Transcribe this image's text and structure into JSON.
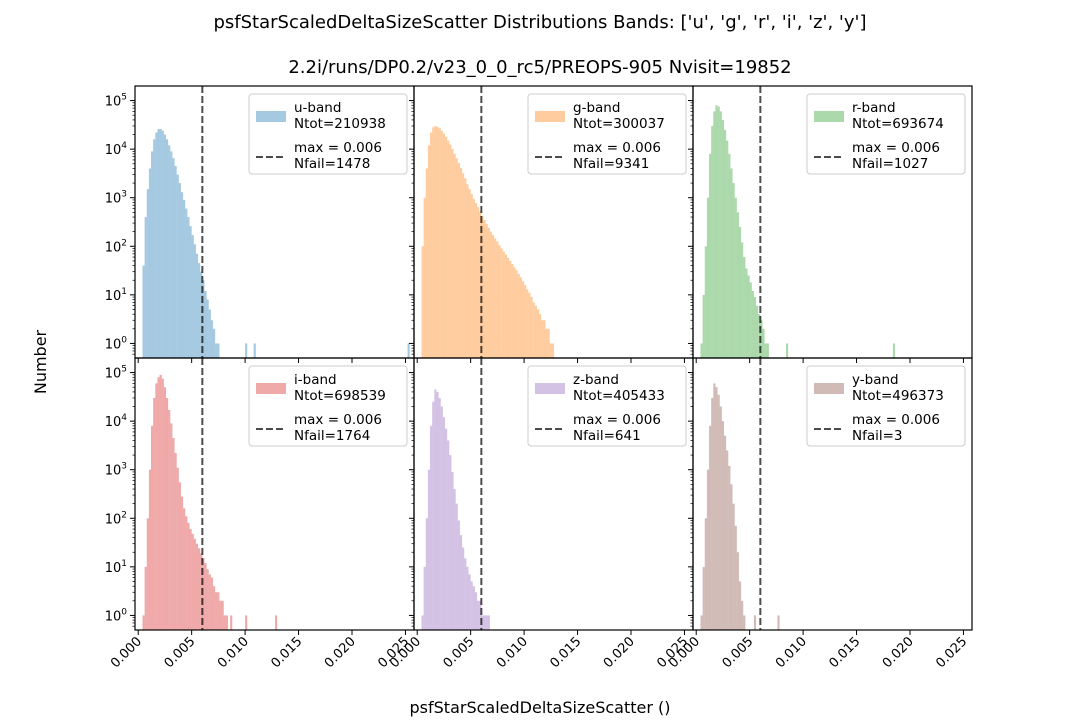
{
  "figure": {
    "title": "psfStarScaledDeltaSizeScatter Distributions  Bands: ['u', 'g', 'r', 'i', 'z', 'y']",
    "subtitle": "2.2i/runs/DP0.2/v23_0_0_rc5/PREOPS-905   Nvisit=19852",
    "xlabel": "psfStarScaledDeltaSizeScatter ()",
    "ylabel": "Number"
  },
  "chart_data": {
    "type": "bar",
    "xlim": [
      -0.0003,
      0.0258
    ],
    "ylim_log10": [
      -0.3,
      5.3
    ],
    "yscale": "log",
    "xticks": [
      0.0,
      0.005,
      0.01,
      0.015,
      0.02,
      0.025
    ],
    "xtick_labels": [
      "0.000",
      "0.005",
      "0.010",
      "0.015",
      "0.020",
      "0.025"
    ],
    "yticks_log10": [
      0,
      1,
      2,
      3,
      4,
      5
    ],
    "legend_placement": "upper right",
    "panels": [
      {
        "band_label": "u-band",
        "ntot_label": "Ntot=210938",
        "max_label": "max = 0.006",
        "nfail_label": "Nfail=1478",
        "color": "#1f77b4",
        "threshold": 0.006,
        "bin_start": 0.0004,
        "bin_width": 0.0002,
        "counts": [
          40,
          400,
          1500,
          4000,
          9000,
          16000,
          22000,
          26000,
          26000,
          24000,
          20000,
          16000,
          12000,
          9000,
          6500,
          4500,
          3000,
          2000,
          1300,
          900,
          600,
          400,
          260,
          170,
          110,
          70,
          45,
          30,
          20,
          12,
          8,
          5,
          3,
          2,
          1,
          1,
          0,
          0,
          0,
          0,
          0,
          0,
          0,
          0,
          0,
          0,
          0,
          0,
          1,
          0,
          0,
          0,
          1,
          0,
          0,
          0,
          0,
          0,
          0,
          0,
          0,
          0,
          0,
          0,
          0,
          0,
          0,
          0,
          0,
          0,
          0,
          0,
          0,
          0,
          0,
          0,
          0,
          0,
          0,
          0,
          0,
          0,
          0,
          0,
          0,
          0,
          0,
          0,
          0,
          0,
          0,
          0,
          0,
          0,
          0,
          0,
          0,
          0,
          0,
          0,
          0,
          0,
          0,
          0,
          0,
          0,
          0,
          0,
          0,
          0,
          0,
          0,
          0,
          0,
          0,
          0,
          0,
          0,
          0,
          0,
          0,
          0,
          0,
          0,
          1
        ]
      },
      {
        "band_label": "g-band",
        "ntot_label": "Ntot=300037",
        "max_label": "max = 0.006",
        "nfail_label": "Nfail=9341",
        "color": "#ff7f0e",
        "threshold": 0.006,
        "bin_start": 0.0004,
        "bin_width": 0.0002,
        "counts": [
          100,
          1000,
          4000,
          12000,
          22000,
          28000,
          30000,
          29000,
          27000,
          24000,
          21000,
          18000,
          15000,
          12500,
          10000,
          8000,
          6500,
          5200,
          4100,
          3200,
          2500,
          1900,
          1500,
          1200,
          950,
          780,
          640,
          520,
          420,
          350,
          290,
          240,
          200,
          170,
          145,
          125,
          105,
          90,
          78,
          68,
          58,
          50,
          43,
          37,
          32,
          27,
          23,
          19,
          16,
          13,
          11,
          9,
          7,
          6,
          5,
          4,
          3,
          3,
          2,
          2,
          1,
          1
        ]
      },
      {
        "band_label": "r-band",
        "ntot_label": "Ntot=693674",
        "max_label": "max = 0.006",
        "nfail_label": "Nfail=1027",
        "color": "#2ca02c",
        "threshold": 0.006,
        "bin_start": 0.0004,
        "bin_width": 0.0002,
        "counts": [
          1,
          10,
          100,
          1000,
          8000,
          30000,
          60000,
          80000,
          75000,
          60000,
          40000,
          25000,
          15000,
          8000,
          4000,
          2000,
          1000,
          500,
          250,
          120,
          60,
          35,
          25,
          18,
          12,
          9,
          6,
          4,
          3,
          2,
          1,
          1,
          0,
          0,
          0,
          0,
          0,
          0,
          0,
          0,
          1,
          0,
          0,
          0,
          0,
          0,
          0,
          0,
          0,
          0,
          0,
          0,
          0,
          0,
          0,
          0,
          0,
          0,
          0,
          0,
          0,
          0,
          0,
          0,
          0,
          0,
          0,
          0,
          0,
          0,
          0,
          0,
          0,
          0,
          0,
          0,
          0,
          0,
          0,
          0,
          0,
          0,
          0,
          0,
          0,
          0,
          0,
          0,
          0,
          0,
          1
        ]
      },
      {
        "band_label": "i-band",
        "ntot_label": "Ntot=698539",
        "max_label": "max = 0.006",
        "nfail_label": "Nfail=1764",
        "color": "#d62728",
        "threshold": 0.006,
        "bin_start": 0.0004,
        "bin_width": 0.0002,
        "counts": [
          1,
          10,
          100,
          1000,
          8000,
          30000,
          60000,
          80000,
          90000,
          75000,
          50000,
          30000,
          17000,
          9000,
          4500,
          2200,
          1100,
          550,
          280,
          160,
          110,
          80,
          60,
          48,
          38,
          30,
          24,
          19,
          15,
          12,
          9,
          7,
          6,
          4,
          3,
          3,
          2,
          2,
          1,
          1,
          0,
          1,
          0,
          0,
          0,
          0,
          0,
          0,
          1,
          0,
          0,
          0,
          0,
          0,
          0,
          0,
          0,
          0,
          0,
          0,
          0,
          0,
          1
        ]
      },
      {
        "band_label": "z-band",
        "ntot_label": "Ntot=405433",
        "max_label": "max = 0.006",
        "nfail_label": "Nfail=641",
        "color": "#9467bd",
        "threshold": 0.006,
        "bin_start": 0.0004,
        "bin_width": 0.0002,
        "counts": [
          1,
          10,
          100,
          1000,
          8000,
          25000,
          45000,
          40000,
          30000,
          20000,
          12000,
          7000,
          4000,
          2000,
          900,
          400,
          200,
          90,
          45,
          25,
          15,
          10,
          7,
          5,
          4,
          3,
          2,
          2,
          1,
          1,
          1,
          1
        ]
      },
      {
        "band_label": "y-band",
        "ntot_label": "Ntot=496373",
        "max_label": "max = 0.006",
        "nfail_label": "Nfail=3",
        "color": "#8c564b",
        "threshold": 0.006,
        "bin_start": 0.0004,
        "bin_width": 0.0002,
        "counts": [
          1,
          10,
          100,
          1000,
          8000,
          30000,
          60000,
          50000,
          35000,
          20000,
          10000,
          5000,
          2500,
          1200,
          500,
          200,
          70,
          20,
          5,
          2,
          1,
          0,
          0,
          0,
          0,
          1,
          0,
          0,
          0,
          0,
          0,
          0,
          0,
          0,
          0,
          0,
          1
        ]
      }
    ]
  }
}
